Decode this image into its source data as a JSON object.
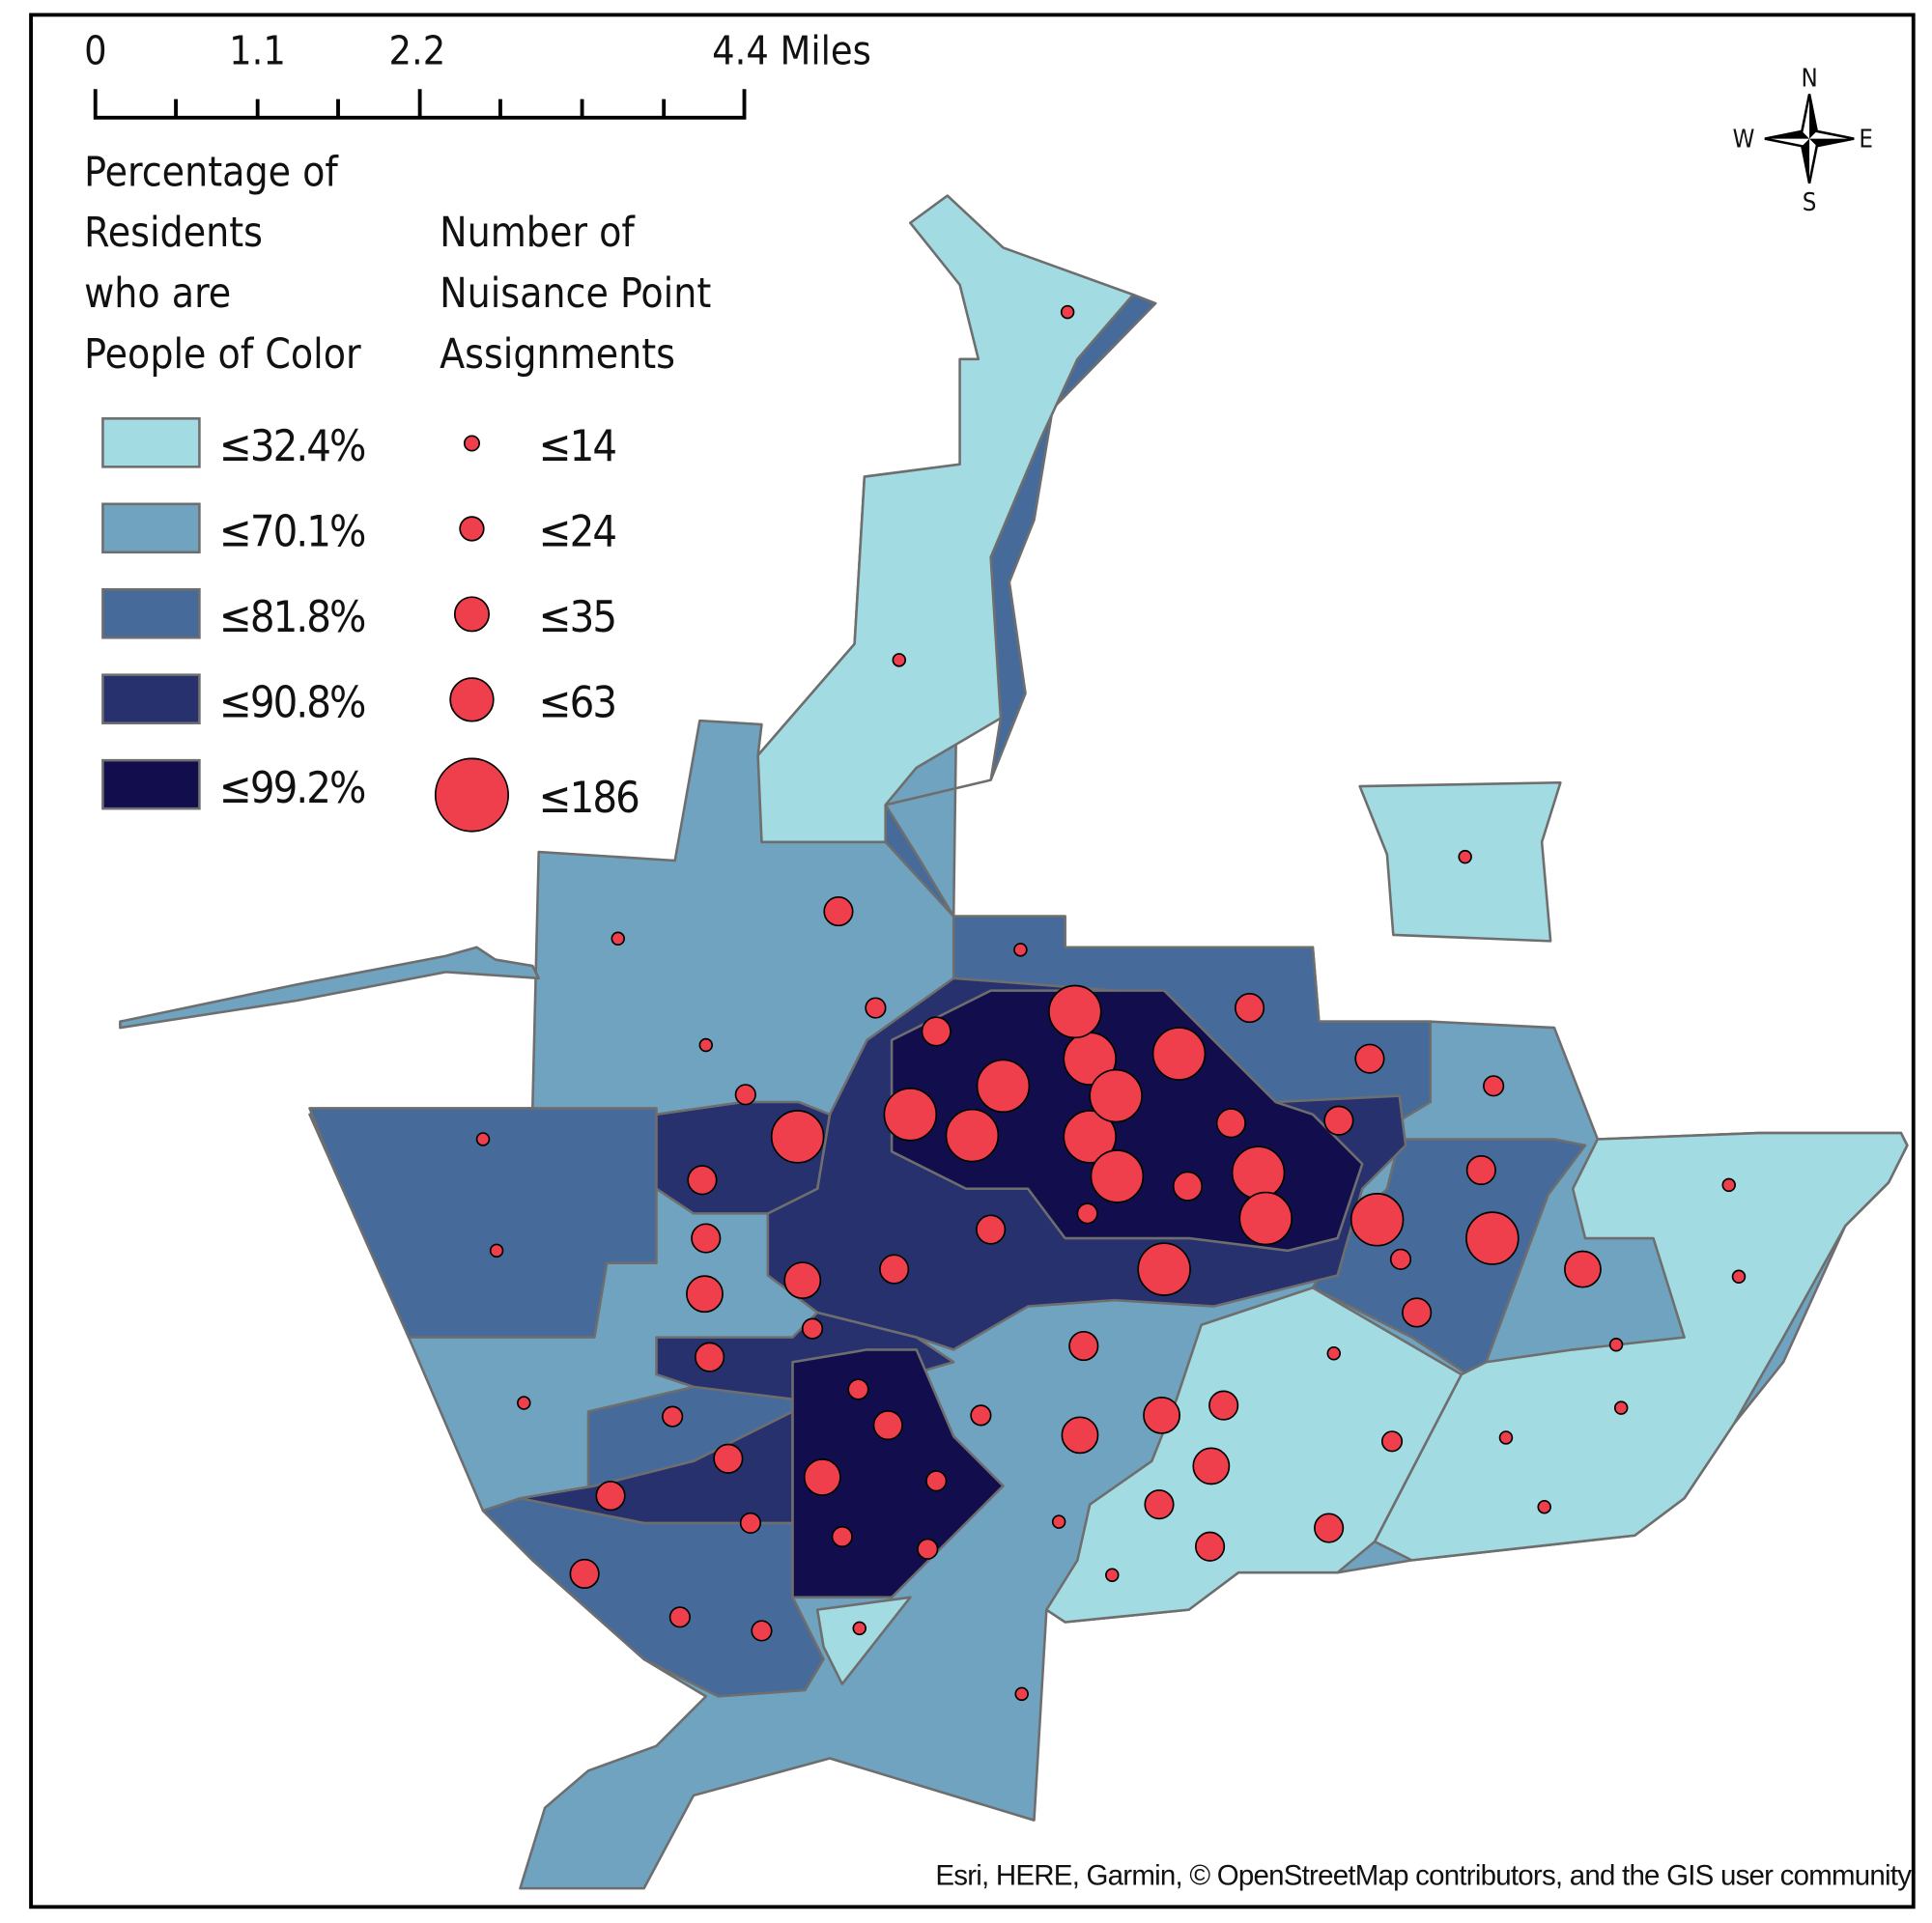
{
  "scale_bar": {
    "labels": [
      "0",
      "1.1",
      "2.2",
      "4.4 Miles"
    ]
  },
  "compass": {
    "n": "N",
    "s": "S",
    "e": "E",
    "w": "W"
  },
  "legend_choropleth": {
    "title_lines": [
      "Percentage of",
      "Residents",
      "who are",
      "People of Color"
    ],
    "classes": [
      {
        "label": "≤32.4%",
        "color": "#a3dbe3"
      },
      {
        "label": "≤70.1%",
        "color": "#6fa3c0"
      },
      {
        "label": "≤81.8%",
        "color": "#466b9a"
      },
      {
        "label": "≤90.8%",
        "color": "#26316e"
      },
      {
        "label": "≤99.2%",
        "color": "#120e4e"
      }
    ]
  },
  "legend_points": {
    "title_lines": [
      "Number of",
      "Nuisance Point",
      "Assignments"
    ],
    "classes": [
      {
        "label": "≤14"
      },
      {
        "label": "≤24"
      },
      {
        "label": "≤35"
      },
      {
        "label": "≤63"
      },
      {
        "label": "≤186"
      }
    ],
    "color": "#ef3f4c"
  },
  "attribution": "Esri, HERE, Garmin, © OpenStreetMap contributors, and the GIS user community"
}
